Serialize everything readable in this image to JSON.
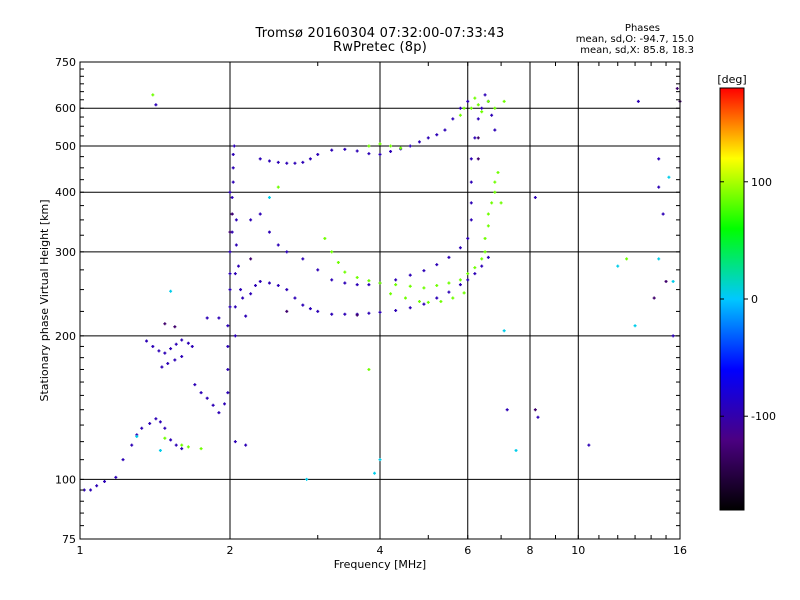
{
  "header": {
    "title": "Tromsø 20160304 07:32:00-07:33:43",
    "subtitle": "RwPretec (8p)",
    "stats_heading": "Phases",
    "stats_o": "mean, sd,O: -94.7, 15.0",
    "stats_x": "mean, sd,X:  85.8, 18.3"
  },
  "chart_data": {
    "type": "scatter",
    "title": "Tromsø 20160304 07:32:00-07:33:43",
    "subtitle": "RwPretec (8p)",
    "xlabel": "Frequency [MHz]",
    "ylabel": "Stationary phase Virtual Height [km]",
    "x_scale": "log",
    "y_scale": "log",
    "xlim": [
      1,
      16
    ],
    "ylim": [
      75,
      750
    ],
    "x_ticks": [
      1,
      2,
      4,
      6,
      8,
      10,
      16
    ],
    "x_tick_labels": [
      "1",
      "2",
      "4",
      "6",
      "8",
      "10",
      "16"
    ],
    "y_ticks": [
      75,
      100,
      200,
      300,
      400,
      500,
      600,
      750
    ],
    "y_tick_labels": [
      "75",
      "100",
      "200",
      "300",
      "400",
      "500",
      "600",
      "750"
    ],
    "grid": true,
    "colorbar": {
      "label": "[deg]",
      "range": [
        -180,
        180
      ],
      "ticks": [
        100,
        0,
        -100
      ],
      "tick_labels": [
        "100",
        "0",
        "-100"
      ],
      "colors": [
        "#000000",
        "#4b0082",
        "#0000ff",
        "#00c8ff",
        "#00ff00",
        "#ffff00",
        "#ff0000"
      ]
    },
    "series": [
      {
        "phase": -95,
        "points": [
          [
            1.02,
            95
          ],
          [
            1.05,
            95
          ],
          [
            1.08,
            97
          ],
          [
            1.12,
            99
          ],
          [
            1.18,
            101
          ],
          [
            1.22,
            110
          ],
          [
            1.27,
            118
          ],
          [
            1.3,
            124
          ],
          [
            1.33,
            128
          ],
          [
            1.38,
            131
          ],
          [
            1.42,
            134
          ],
          [
            1.45,
            132
          ],
          [
            1.48,
            128
          ],
          [
            1.52,
            121
          ],
          [
            1.56,
            118
          ],
          [
            1.6,
            116
          ],
          [
            1.36,
            195
          ],
          [
            1.4,
            190
          ],
          [
            1.44,
            186
          ],
          [
            1.48,
            184
          ],
          [
            1.52,
            188
          ],
          [
            1.56,
            192
          ],
          [
            1.6,
            196
          ],
          [
            1.65,
            193
          ],
          [
            1.68,
            190
          ],
          [
            1.46,
            172
          ],
          [
            1.5,
            175
          ],
          [
            1.55,
            178
          ],
          [
            1.6,
            181
          ],
          [
            1.42,
            610
          ],
          [
            1.7,
            158
          ],
          [
            1.75,
            152
          ],
          [
            1.8,
            148
          ],
          [
            1.85,
            143
          ],
          [
            1.9,
            138
          ],
          [
            1.95,
            144
          ],
          [
            1.98,
            152
          ],
          [
            1.98,
            170
          ],
          [
            1.98,
            190
          ],
          [
            1.98,
            210
          ],
          [
            2.0,
            230
          ],
          [
            2.0,
            250
          ],
          [
            2.0,
            270
          ],
          [
            2.0,
            300
          ],
          [
            2.02,
            330
          ],
          [
            2.02,
            360
          ],
          [
            2.02,
            390
          ],
          [
            2.0,
            400
          ],
          [
            2.03,
            420
          ],
          [
            2.03,
            450
          ],
          [
            2.03,
            480
          ],
          [
            2.04,
            500
          ],
          [
            2.05,
            200
          ],
          [
            2.05,
            230
          ],
          [
            2.05,
            270
          ],
          [
            2.06,
            310
          ],
          [
            2.06,
            350
          ],
          [
            2.08,
            280
          ],
          [
            2.1,
            250
          ],
          [
            2.12,
            240
          ],
          [
            2.15,
            220
          ],
          [
            2.2,
            245
          ],
          [
            2.25,
            255
          ],
          [
            2.3,
            260
          ],
          [
            2.4,
            258
          ],
          [
            2.5,
            255
          ],
          [
            2.6,
            250
          ],
          [
            2.7,
            240
          ],
          [
            2.8,
            232
          ],
          [
            2.9,
            228
          ],
          [
            3.0,
            225
          ],
          [
            3.2,
            222
          ],
          [
            3.4,
            222
          ],
          [
            3.6,
            222
          ],
          [
            3.8,
            223
          ],
          [
            4.0,
            224
          ],
          [
            4.3,
            226
          ],
          [
            4.6,
            229
          ],
          [
            4.9,
            233
          ],
          [
            5.2,
            240
          ],
          [
            5.5,
            247
          ],
          [
            5.8,
            256
          ],
          [
            6.0,
            262
          ],
          [
            6.2,
            270
          ],
          [
            6.4,
            280
          ],
          [
            6.6,
            292
          ],
          [
            1.8,
            218
          ],
          [
            1.9,
            218
          ],
          [
            2.2,
            350
          ],
          [
            2.3,
            360
          ],
          [
            2.4,
            330
          ],
          [
            2.5,
            310
          ],
          [
            2.6,
            300
          ],
          [
            2.8,
            290
          ],
          [
            3.0,
            275
          ],
          [
            3.2,
            262
          ],
          [
            3.4,
            258
          ],
          [
            3.6,
            256
          ],
          [
            3.8,
            256
          ],
          [
            4.0,
            258
          ],
          [
            4.3,
            262
          ],
          [
            4.6,
            268
          ],
          [
            4.9,
            274
          ],
          [
            5.2,
            282
          ],
          [
            5.5,
            292
          ],
          [
            5.8,
            306
          ],
          [
            6.0,
            320
          ],
          [
            6.1,
            350
          ],
          [
            6.1,
            380
          ],
          [
            6.1,
            420
          ],
          [
            6.1,
            470
          ],
          [
            6.2,
            520
          ],
          [
            6.3,
            570
          ],
          [
            6.4,
            600
          ],
          [
            6.5,
            640
          ],
          [
            6.6,
            620
          ],
          [
            6.7,
            580
          ],
          [
            6.8,
            540
          ],
          [
            2.3,
            470
          ],
          [
            2.4,
            465
          ],
          [
            2.5,
            462
          ],
          [
            2.6,
            460
          ],
          [
            2.7,
            460
          ],
          [
            2.8,
            462
          ],
          [
            2.9,
            470
          ],
          [
            3.0,
            480
          ],
          [
            3.2,
            490
          ],
          [
            3.4,
            492
          ],
          [
            3.6,
            488
          ],
          [
            3.8,
            482
          ],
          [
            4.0,
            480
          ],
          [
            4.2,
            487
          ],
          [
            4.4,
            493
          ],
          [
            4.6,
            500
          ],
          [
            4.8,
            510
          ],
          [
            5.0,
            520
          ],
          [
            5.2,
            528
          ],
          [
            5.4,
            540
          ],
          [
            5.6,
            570
          ],
          [
            5.8,
            600
          ],
          [
            6.0,
            620
          ],
          [
            2.05,
            120
          ],
          [
            2.15,
            118
          ],
          [
            13.2,
            620
          ],
          [
            14.5,
            410
          ],
          [
            14.5,
            470
          ],
          [
            14.8,
            360
          ],
          [
            15.5,
            200
          ],
          [
            8.2,
            390
          ],
          [
            7.2,
            140
          ],
          [
            8.3,
            135
          ],
          [
            10.5,
            118
          ]
        ]
      },
      {
        "phase": 86,
        "points": [
          [
            1.4,
            640
          ],
          [
            1.48,
            122
          ],
          [
            1.6,
            118
          ],
          [
            1.65,
            117
          ],
          [
            1.75,
            116
          ],
          [
            3.1,
            320
          ],
          [
            3.2,
            300
          ],
          [
            3.3,
            285
          ],
          [
            3.4,
            272
          ],
          [
            3.6,
            265
          ],
          [
            3.8,
            261
          ],
          [
            4.0,
            258
          ],
          [
            4.3,
            256
          ],
          [
            4.6,
            254
          ],
          [
            4.9,
            252
          ],
          [
            5.2,
            255
          ],
          [
            5.5,
            258
          ],
          [
            5.8,
            262
          ],
          [
            6.0,
            270
          ],
          [
            6.2,
            278
          ],
          [
            6.4,
            290
          ],
          [
            6.5,
            300
          ],
          [
            6.5,
            320
          ],
          [
            6.6,
            340
          ],
          [
            6.6,
            360
          ],
          [
            6.7,
            380
          ],
          [
            6.8,
            400
          ],
          [
            6.8,
            420
          ],
          [
            6.9,
            440
          ],
          [
            3.8,
            500
          ],
          [
            4.0,
            505
          ],
          [
            4.2,
            500
          ],
          [
            4.4,
            495
          ],
          [
            6.1,
            600
          ],
          [
            6.2,
            630
          ],
          [
            6.3,
            610
          ],
          [
            6.4,
            590
          ],
          [
            6.6,
            620
          ],
          [
            6.8,
            600
          ],
          [
            5.8,
            580
          ],
          [
            5.9,
            600
          ],
          [
            4.2,
            245
          ],
          [
            4.5,
            240
          ],
          [
            4.8,
            236
          ],
          [
            5.0,
            235
          ],
          [
            5.3,
            236
          ],
          [
            5.6,
            240
          ],
          [
            5.9,
            246
          ],
          [
            7.1,
            620
          ],
          [
            7.0,
            380
          ],
          [
            12.5,
            290
          ],
          [
            2.5,
            410
          ],
          [
            3.8,
            170
          ]
        ]
      },
      {
        "phase": 5,
        "points": [
          [
            1.52,
            248
          ],
          [
            1.3,
            123
          ],
          [
            1.45,
            115
          ],
          [
            2.85,
            100
          ],
          [
            3.9,
            103
          ],
          [
            4.0,
            110
          ],
          [
            7.1,
            205
          ],
          [
            7.5,
            115
          ],
          [
            12.0,
            280
          ],
          [
            13.0,
            210
          ],
          [
            14.5,
            290
          ],
          [
            15.2,
            430
          ],
          [
            15.5,
            260
          ],
          [
            2.4,
            390
          ]
        ]
      },
      {
        "phase": -130,
        "points": [
          [
            1.48,
            212
          ],
          [
            1.55,
            209
          ],
          [
            2.0,
            330
          ],
          [
            2.02,
            360
          ],
          [
            2.2,
            290
          ],
          [
            2.6,
            225
          ],
          [
            3.6,
            221
          ],
          [
            6.3,
            470
          ],
          [
            6.3,
            520
          ],
          [
            8.2,
            140
          ],
          [
            15.0,
            260
          ],
          [
            14.2,
            240
          ],
          [
            16.0,
            620
          ],
          [
            15.8,
            660
          ]
        ]
      }
    ]
  }
}
